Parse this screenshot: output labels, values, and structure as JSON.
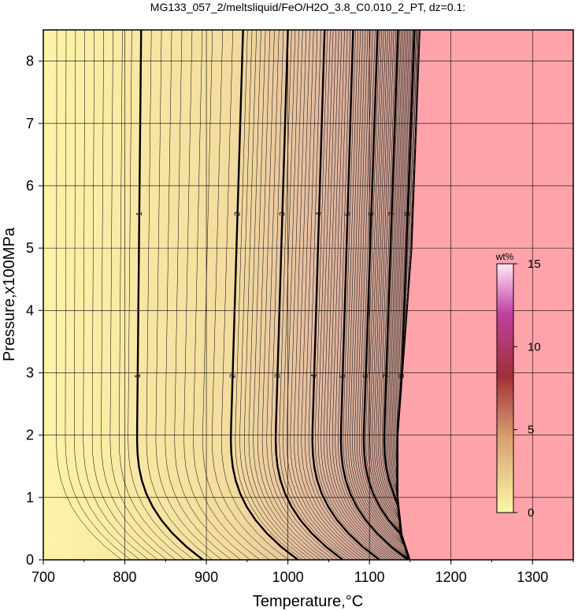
{
  "chart_data": {
    "type": "heatmap",
    "title": "MG133_057_2/meltsliquid/FeO/H2O_3.8_C0.010_2_PT, dz=0.1:",
    "xlabel": "Temperature,°C",
    "ylabel": "Pressure,x100MPa",
    "xlim": [
      700,
      1350
    ],
    "ylim": [
      0,
      8.5
    ],
    "x_ticks": [
      "700",
      "800",
      "900",
      "1000",
      "1100",
      "1200",
      "1300"
    ],
    "y_ticks": [
      "0",
      "1",
      "2",
      "3",
      "4",
      "5",
      "6",
      "7",
      "8"
    ],
    "grid": true,
    "colorbar": {
      "label": "wt%",
      "range": [
        0,
        15
      ],
      "ticks": [
        "0",
        "5",
        "10",
        "15"
      ],
      "colors": [
        "#fbf8a6",
        "#d8a070",
        "#a03038",
        "#c040a0",
        "#ffe8f8"
      ]
    },
    "liquidus_fill_color": "#ffa3ab",
    "melt_region_base_color": "#fdf3a8",
    "contour_interval": 0.1,
    "labeled_contours": [
      {
        "value": 1,
        "label": "1",
        "x_low": 815,
        "x_high": 820
      },
      {
        "value": 2,
        "label": "2",
        "x_low": 930,
        "x_high": 945
      },
      {
        "value": 3,
        "label": "3",
        "x_low": 985,
        "x_high": 1000
      },
      {
        "value": 4,
        "label": "4",
        "x_low": 1030,
        "x_high": 1045
      },
      {
        "value": 5,
        "label": "5",
        "x_low": 1065,
        "x_high": 1080
      },
      {
        "value": 6,
        "label": "6",
        "x_low": 1093,
        "x_high": 1110
      },
      {
        "value": 7,
        "label": "7",
        "x_low": 1118,
        "x_high": 1135
      },
      {
        "value": 8,
        "label": "8",
        "x_low": 1137,
        "x_high": 1155
      }
    ],
    "liquidus_boundary": [
      {
        "x": 1150,
        "y": 0
      },
      {
        "x": 1140,
        "y": 0.4
      },
      {
        "x": 1135,
        "y": 1.0
      },
      {
        "x": 1135,
        "y": 2.0
      },
      {
        "x": 1152,
        "y": 5.0
      },
      {
        "x": 1162,
        "y": 8.5
      }
    ]
  }
}
